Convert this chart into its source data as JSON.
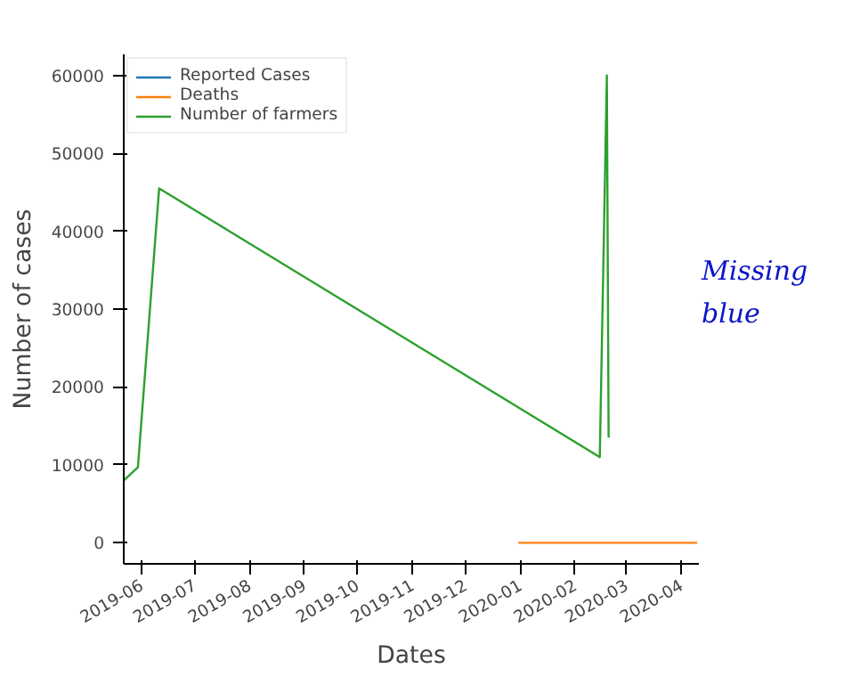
{
  "chart_data": {
    "type": "line",
    "xlabel": "Dates",
    "ylabel": "Number of cases",
    "series": [
      {
        "name": "Reported Cases",
        "color": "#1f77b4"
      },
      {
        "name": "Deaths",
        "color": "#ff7f0e",
        "x": [
          "2019-12-31",
          "2020-01-31",
          "2020-02-29",
          "2020-04-10"
        ],
        "values": [
          0,
          0,
          0,
          0
        ]
      },
      {
        "name": "Number of farmers",
        "color": "#2ca02c",
        "x": [
          "2019-05-22",
          "2019-05-30",
          "2019-06-11",
          "2020-02-15",
          "2020-02-19",
          "2020-02-20"
        ],
        "values": [
          8000,
          9700,
          45500,
          11000,
          60000,
          13500
        ]
      }
    ],
    "xlim": [
      "2019-05-22",
      "2020-04-11"
    ],
    "xticks": [
      {
        "value": "2019-06-01",
        "label": "2019-06"
      },
      {
        "value": "2019-07-01",
        "label": "2019-07"
      },
      {
        "value": "2019-08-01",
        "label": "2019-08"
      },
      {
        "value": "2019-09-01",
        "label": "2019-09"
      },
      {
        "value": "2019-10-01",
        "label": "2019-10"
      },
      {
        "value": "2019-11-01",
        "label": "2019-11"
      },
      {
        "value": "2019-12-01",
        "label": "2019-12"
      },
      {
        "value": "2020-01-01",
        "label": "2020-01"
      },
      {
        "value": "2020-02-01",
        "label": "2020-02"
      },
      {
        "value": "2020-03-01",
        "label": "2020-03"
      },
      {
        "value": "2020-04-01",
        "label": "2020-04"
      }
    ],
    "ylim": [
      -2700,
      62700
    ],
    "yticks": [
      0,
      10000,
      20000,
      30000,
      40000,
      50000,
      60000
    ],
    "grid": false,
    "legend": "top left",
    "line_style": "solid",
    "annotations": [
      "Missing blue"
    ]
  }
}
